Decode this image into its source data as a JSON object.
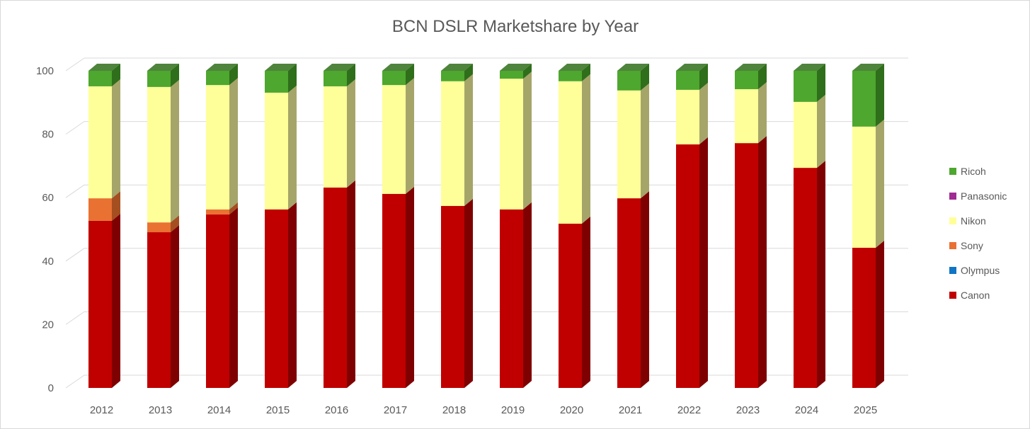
{
  "chart_data": {
    "type": "bar",
    "stacked": true,
    "three_d": true,
    "title": "BCN DSLR Marketshare by Year",
    "xlabel": "",
    "ylabel": "",
    "ylim": [
      0,
      100
    ],
    "yticks": [
      0,
      20,
      40,
      60,
      80,
      100
    ],
    "grid": true,
    "legend_position": "right",
    "categories": [
      "2012",
      "2013",
      "2014",
      "2015",
      "2016",
      "2017",
      "2018",
      "2019",
      "2020",
      "2021",
      "2022",
      "2023",
      "2024",
      "2025"
    ],
    "series": [
      {
        "name": "Canon",
        "color": "#C00000",
        "side": "#7F0000",
        "values": [
          52.7,
          49.1,
          54.7,
          56.3,
          63.2,
          61.2,
          57.4,
          56.3,
          51.8,
          59.8,
          76.8,
          77.2,
          69.4,
          44.2
        ]
      },
      {
        "name": "Olympus",
        "color": "#0F75C4",
        "side": "#0A4F85",
        "values": [
          0,
          0,
          0,
          0,
          0,
          0,
          0,
          0,
          0,
          0,
          0,
          0,
          0,
          0
        ]
      },
      {
        "name": "Sony",
        "color": "#E97132",
        "side": "#A54E20",
        "values": [
          7.1,
          3.1,
          1.6,
          0,
          0,
          0,
          0,
          0,
          0,
          0,
          0,
          0,
          0,
          0
        ]
      },
      {
        "name": "Nikon",
        "color": "#FFFF99",
        "side": "#A5A56A",
        "values": [
          35.3,
          42.7,
          39.2,
          36.8,
          31.9,
          34.3,
          39.3,
          41.2,
          44.9,
          34.0,
          17.2,
          17.0,
          20.8,
          38.2
        ]
      },
      {
        "name": "Panasonic",
        "color": "#A02B93",
        "side": "#6C1D63",
        "values": [
          0,
          0,
          0,
          0,
          0,
          0,
          0,
          0,
          0,
          0,
          0,
          0,
          0,
          0
        ]
      },
      {
        "name": "Ricoh",
        "color": "#4EA72E",
        "side": "#2F6E1A",
        "values": [
          4.9,
          5.1,
          4.5,
          6.9,
          4.9,
          4.5,
          3.3,
          2.5,
          3.3,
          6.2,
          6.0,
          5.8,
          9.8,
          17.6
        ]
      }
    ]
  }
}
